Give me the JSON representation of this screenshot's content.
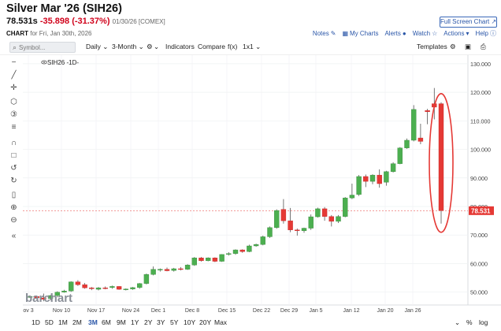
{
  "header": {
    "title": "Silver Mar '26 (SIH26)",
    "last": "78.531s",
    "change": "-35.898 (-31.37%)",
    "meta": "01/30/26 [COMEX]",
    "fullscreen_label": "Full Screen Chart",
    "chart_label": "CHART",
    "chart_for": "for Fri, Jan 30th, 2026"
  },
  "links": [
    {
      "label": "Notes",
      "icon": "edit-icon"
    },
    {
      "label": "My Charts",
      "icon": "chart-icon"
    },
    {
      "label": "Alerts",
      "icon": "bell-icon"
    },
    {
      "label": "Watch",
      "icon": "star-icon"
    },
    {
      "label": "Actions",
      "icon": "chevron-down-icon"
    },
    {
      "label": "Help",
      "icon": "help-icon"
    }
  ],
  "toolbar": {
    "search_placeholder": "Symbol...",
    "interval": "Daily",
    "range": "3-Month",
    "indicators": "Indicators",
    "compare": "Compare",
    "fx": "f(x)",
    "layout": "1x1",
    "templates": "Templates"
  },
  "legend": {
    "symbol": "SIH26",
    "interval": "-1D-"
  },
  "watermark": "barchart",
  "price_tag": "78.531",
  "periods": [
    "1D",
    "5D",
    "1M",
    "2M",
    "3M",
    "6M",
    "9M",
    "1Y",
    "2Y",
    "3Y",
    "5Y",
    "10Y",
    "20Y",
    "Max"
  ],
  "active_period": "3M",
  "bottom_right": [
    "%",
    "log"
  ],
  "colors": {
    "up": "#4caf50",
    "down": "#e53935",
    "link": "#2a56a8",
    "highlight": "#e53935"
  },
  "chart_data": {
    "type": "candlestick",
    "y_ticks": [
      50,
      60,
      70,
      80,
      90,
      100,
      110,
      120,
      130
    ],
    "y_tick_labels": [
      "50.000",
      "60.000",
      "70.000",
      "80.000",
      "90.000",
      "100.000",
      "110.000",
      "120.000",
      "130.000"
    ],
    "x_tick_labels": [
      "ov 3",
      "Nov 10",
      "Nov 17",
      "Nov 24",
      "Dec 1",
      "Dec 8",
      "Dec 15",
      "Dec 22",
      "Dec 29",
      "Jan 5",
      "Jan 12",
      "Jan 20",
      "Jan 26"
    ],
    "ylim": [
      45.5,
      133
    ],
    "ohlc": [
      [
        48.2,
        48.8,
        48.0,
        48.5
      ],
      [
        48.5,
        48.8,
        47.8,
        48.0
      ],
      [
        48.0,
        49.5,
        46.8,
        47.5
      ],
      [
        47.8,
        49.0,
        47.2,
        48.8
      ],
      [
        48.8,
        50.3,
        48.2,
        50.0
      ],
      [
        50.0,
        50.8,
        49.8,
        50.4
      ],
      [
        50.4,
        53.8,
        50.1,
        53.6
      ],
      [
        53.6,
        54.2,
        52.2,
        52.6
      ],
      [
        52.6,
        53.2,
        51.2,
        51.5
      ],
      [
        51.5,
        51.8,
        50.7,
        51.2
      ],
      [
        51.0,
        51.8,
        50.6,
        51.5
      ],
      [
        51.5,
        52.0,
        51.0,
        51.4
      ],
      [
        51.6,
        52.3,
        51.2,
        52.0
      ],
      [
        52.0,
        52.1,
        50.8,
        51.0
      ],
      [
        51.0,
        51.3,
        50.6,
        51.1
      ],
      [
        51.1,
        51.8,
        50.8,
        51.6
      ],
      [
        51.6,
        53.2,
        51.2,
        53.0
      ],
      [
        53.0,
        56.5,
        52.7,
        56.2
      ],
      [
        56.2,
        59.0,
        55.9,
        58.0
      ],
      [
        57.8,
        58.3,
        57.2,
        58.0
      ],
      [
        58.0,
        58.6,
        57.3,
        57.5
      ],
      [
        57.6,
        58.5,
        57.2,
        58.2
      ],
      [
        58.2,
        58.8,
        57.6,
        58.0
      ],
      [
        58.0,
        59.8,
        57.8,
        59.5
      ],
      [
        59.5,
        62.3,
        59.2,
        62.0
      ],
      [
        62.0,
        62.3,
        60.7,
        61.0
      ],
      [
        61.0,
        62.2,
        60.8,
        62.0
      ],
      [
        62.0,
        62.2,
        60.5,
        60.8
      ],
      [
        60.8,
        63.3,
        60.6,
        63.2
      ],
      [
        63.2,
        64.0,
        62.8,
        63.5
      ],
      [
        63.5,
        65.0,
        63.1,
        64.8
      ],
      [
        64.8,
        65.0,
        63.8,
        64.2
      ],
      [
        64.2,
        66.6,
        64.0,
        66.2
      ],
      [
        66.2,
        67.0,
        65.9,
        66.7
      ],
      [
        66.7,
        69.8,
        66.4,
        69.4
      ],
      [
        69.4,
        73.0,
        69.0,
        72.6
      ],
      [
        72.6,
        79.0,
        72.2,
        78.6
      ],
      [
        79.0,
        82.6,
        74.0,
        75.0
      ],
      [
        75.0,
        79.5,
        71.0,
        71.8
      ],
      [
        71.8,
        72.3,
        69.8,
        71.5
      ],
      [
        71.5,
        72.6,
        70.8,
        72.4
      ],
      [
        72.4,
        77.2,
        71.8,
        76.4
      ],
      [
        76.4,
        79.6,
        76.1,
        79.2
      ],
      [
        79.2,
        79.8,
        75.0,
        76.5
      ],
      [
        76.5,
        77.0,
        73.0,
        74.8
      ],
      [
        74.8,
        77.0,
        74.2,
        76.5
      ],
      [
        76.5,
        83.3,
        76.2,
        83.0
      ],
      [
        83.0,
        88.0,
        82.6,
        84.0
      ],
      [
        84.2,
        91.0,
        83.7,
        90.5
      ],
      [
        90.5,
        91.2,
        86.8,
        88.8
      ],
      [
        88.8,
        91.3,
        87.8,
        91.0
      ],
      [
        91.0,
        93.0,
        86.6,
        88.0
      ],
      [
        88.5,
        92.5,
        87.3,
        92.2
      ],
      [
        92.2,
        95.5,
        91.9,
        95.0
      ],
      [
        95.0,
        100.8,
        94.8,
        100.5
      ],
      [
        100.5,
        103.8,
        100.2,
        103.2
      ],
      [
        103.2,
        115.5,
        102.8,
        114.0
      ],
      [
        104.0,
        109.0,
        101.8,
        102.8
      ],
      [
        113.6,
        114.2,
        108.8,
        113.2
      ],
      [
        116.0,
        121.5,
        110.5,
        114.8
      ],
      [
        116.0,
        116.5,
        74.0,
        78.531
      ]
    ],
    "last_price": 78.531
  }
}
